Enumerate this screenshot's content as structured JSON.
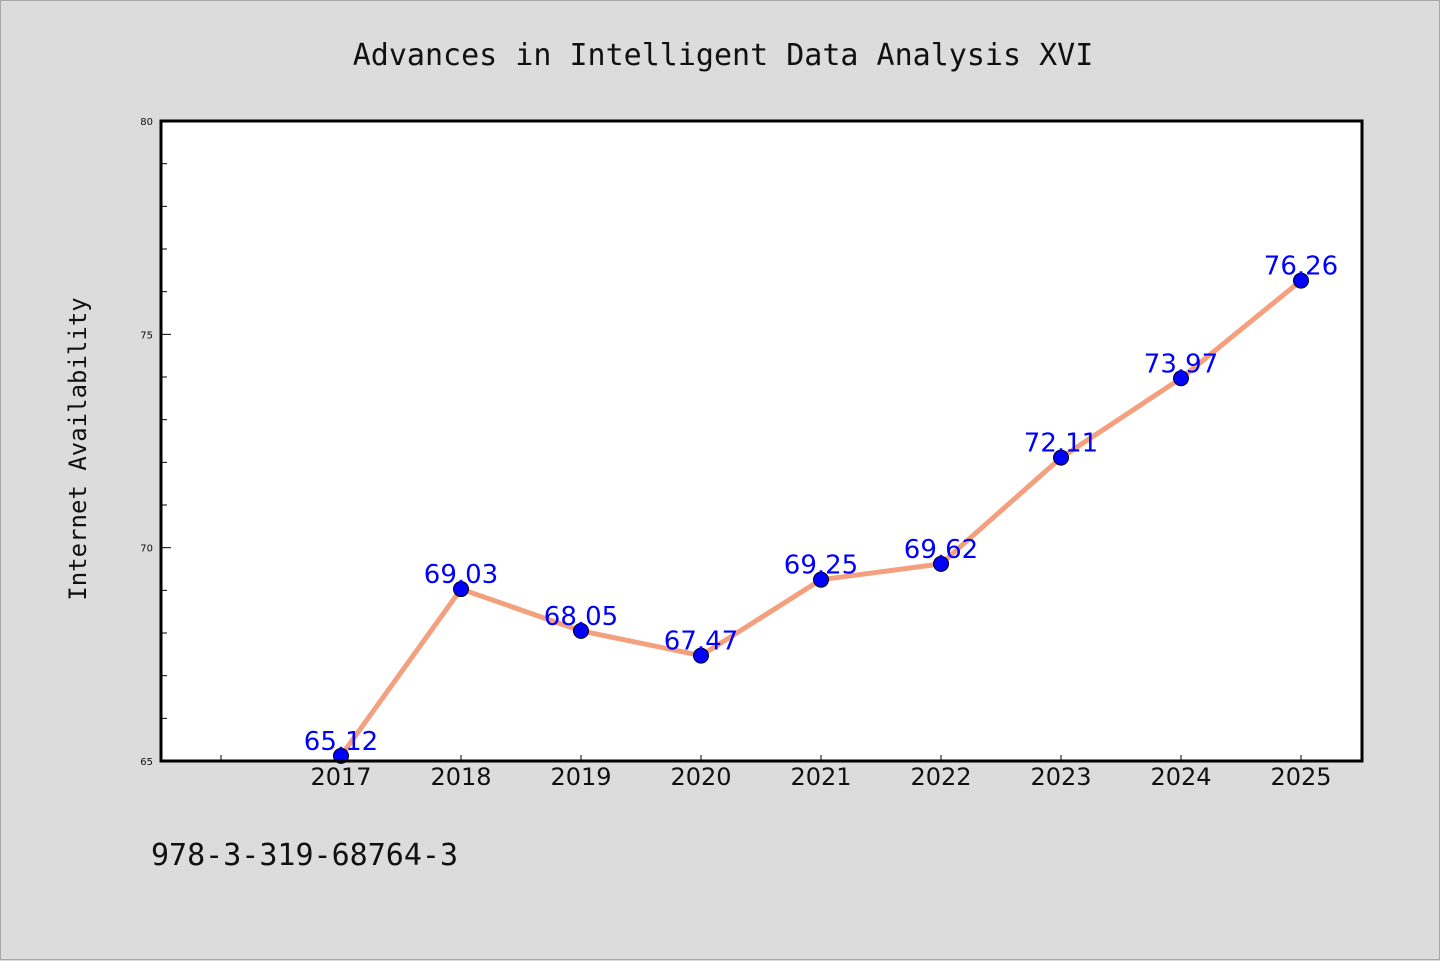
{
  "chart_data": {
    "type": "line",
    "title": "Advances in Intelligent Data Analysis XVI",
    "xlabel": "",
    "ylabel": "Internet Availability",
    "categories": [
      "2017",
      "2018",
      "2019",
      "2020",
      "2021",
      "2022",
      "2023",
      "2024",
      "2025"
    ],
    "series": [
      {
        "values": [
          65.12,
          69.03,
          68.05,
          67.47,
          69.25,
          69.62,
          72.11,
          73.97,
          76.26
        ],
        "labels": [
          "65.12",
          "69.03",
          "68.05",
          "67.47",
          "69.25",
          "69.62",
          "72.11",
          "73.97",
          "76.26"
        ],
        "line_color": "#f4a07f",
        "marker_color": "#0000ff",
        "label_color": "#0000ff"
      }
    ],
    "ylim": [
      65,
      80
    ],
    "yticks": [
      "65",
      "70",
      "75",
      "80"
    ],
    "grid": false,
    "legend": "none"
  },
  "footer": {
    "isbn": "978-3-319-68764-3"
  }
}
